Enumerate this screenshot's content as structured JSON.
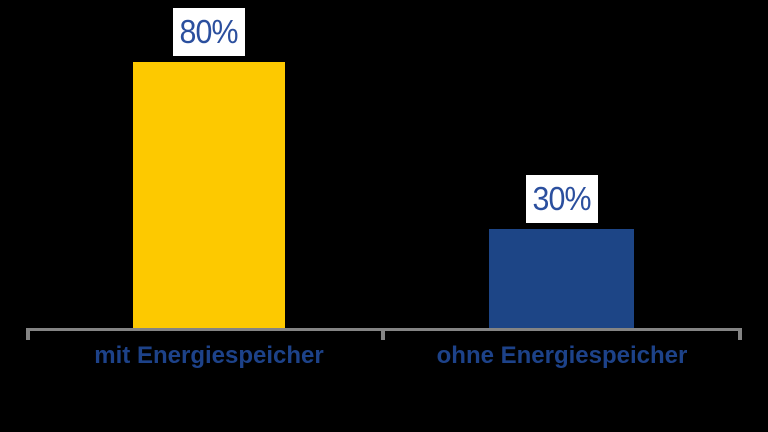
{
  "background_color": "#000000",
  "chart_data": {
    "type": "bar",
    "categories": [
      "mit Energiespeicher",
      "ohne Energiespeicher"
    ],
    "values": [
      80,
      30
    ],
    "value_labels": [
      "80%",
      "30%"
    ],
    "unit": "%",
    "ylim": [
      0,
      100
    ],
    "grid": false,
    "legend": false,
    "bar_colors": [
      "#FDC900",
      "#1D4586"
    ],
    "value_label_color": "#2B4F9E",
    "value_label_bg": "#FFFFFF",
    "category_label_color": "#1D4289",
    "axis_color": "#848484"
  }
}
